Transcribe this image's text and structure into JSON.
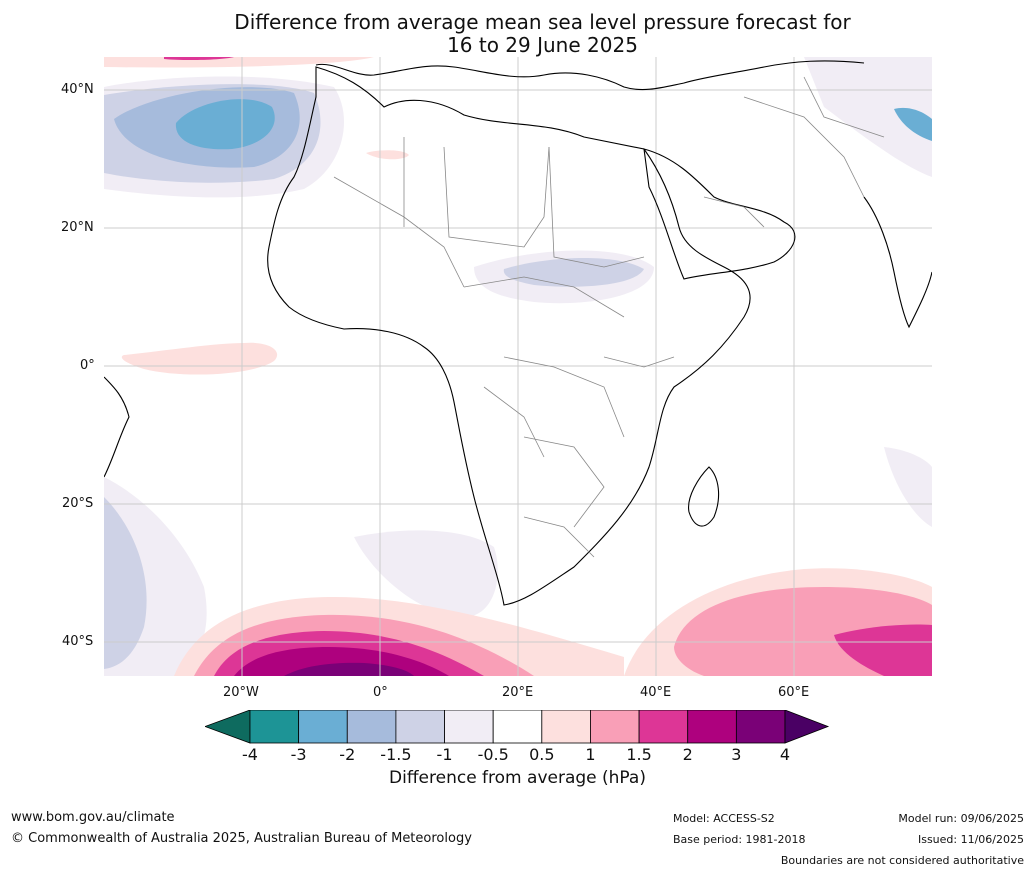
{
  "title_line1": "Difference from average mean sea level pressure forecast for",
  "title_line2": "16 to 29 June 2025",
  "lat_labels": [
    "40°N",
    "20°N",
    "0°",
    "20°S",
    "40°S"
  ],
  "lon_labels": [
    "20°W",
    "0°",
    "20°E",
    "40°E",
    "60°E"
  ],
  "colorbar": {
    "ticks": [
      "-4",
      "-3",
      "-2",
      "-1.5",
      "-1",
      "-0.5",
      "0.5",
      "1",
      "1.5",
      "2",
      "3",
      "4"
    ],
    "colors": [
      "#1d9496",
      "#6aaed4",
      "#a6bbdc",
      "#ced2e6",
      "#f1edf5",
      "#ffffff",
      "#fde0de",
      "#f99fb7",
      "#dd3696",
      "#ae017e",
      "#7a0177"
    ],
    "under_color": "#0e6b5f",
    "over_color": "#4a0064",
    "label": "Difference from average (hPa)"
  },
  "footer": {
    "url": "www.bom.gov.au/climate",
    "copyright": "© Commonwealth of Australia 2025, Australian Bureau of Meteorology",
    "model": "Model: ACCESS-S2",
    "base_period": "Base period: 1981-2018",
    "model_run": "Model run: 09/06/2025",
    "issued": "Issued: 11/06/2025",
    "disclaimer": "Boundaries are not considered authoritative"
  }
}
